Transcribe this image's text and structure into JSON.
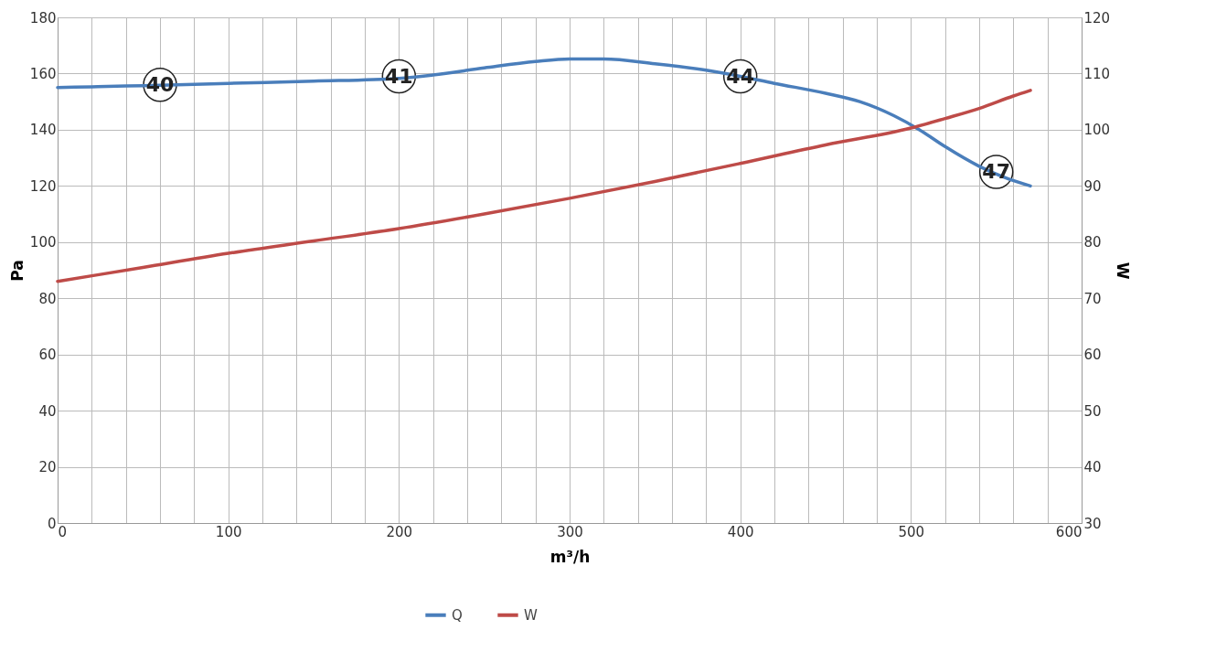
{
  "chart_data": {
    "type": "line",
    "xlabel": "m³/h",
    "ylabel": "Pa",
    "y2label": "W",
    "xlim": [
      0,
      600
    ],
    "xticks": [
      0,
      {
        "value": 20,
        "label": null
      },
      {
        "value": 40,
        "label": null
      },
      {
        "value": 60,
        "label": null
      },
      {
        "value": 80,
        "label": null
      },
      100,
      {
        "value": 120,
        "label": null
      },
      {
        "value": 140,
        "label": null
      },
      {
        "value": 160,
        "label": null
      },
      {
        "value": 180,
        "label": null
      },
      200,
      {
        "value": 220,
        "label": null
      },
      {
        "value": 240,
        "label": null
      },
      {
        "value": 260,
        "label": null
      },
      {
        "value": 280,
        "label": null
      },
      300,
      {
        "value": 320,
        "label": null
      },
      {
        "value": 340,
        "label": null
      },
      {
        "value": 360,
        "label": null
      },
      {
        "value": 380,
        "label": null
      },
      400,
      {
        "value": 420,
        "label": null
      },
      {
        "value": 440,
        "label": null
      },
      {
        "value": 460,
        "label": null
      },
      {
        "value": 480,
        "label": null
      },
      500,
      {
        "value": 520,
        "label": null
      },
      {
        "value": 540,
        "label": null
      },
      {
        "value": 560,
        "label": null
      },
      {
        "value": 580,
        "label": null
      },
      600
    ],
    "ylim": [
      0,
      180
    ],
    "yticks": [
      0,
      20,
      40,
      60,
      80,
      100,
      120,
      140,
      160,
      180
    ],
    "y2lim": [
      30,
      120
    ],
    "y2ticks": [
      30,
      40,
      50,
      60,
      70,
      80,
      90,
      100,
      110,
      120
    ],
    "grid": true,
    "legend": "bottom",
    "marker": "none",
    "line_style": "solid",
    "series": [
      {
        "name": "Q",
        "color": "#4a7ebb",
        "x": [
          0,
          20,
          40,
          60,
          100,
          150,
          200,
          220,
          250,
          280,
          300,
          320,
          350,
          380,
          400,
          420,
          450,
          470,
          490,
          505,
          520,
          540,
          555,
          570
        ],
        "values": [
          155,
          155.3,
          155.6,
          155.8,
          156.5,
          157.3,
          158.3,
          159.5,
          162,
          164.3,
          165.2,
          165.2,
          163.5,
          161.2,
          159,
          156.5,
          153,
          150,
          145,
          140,
          134,
          127,
          123,
          120
        ]
      },
      {
        "name": "W",
        "color": "#be4b48",
        "axis": "y2",
        "x": [
          0,
          50,
          100,
          150,
          200,
          250,
          300,
          350,
          400,
          450,
          500,
          520,
          540,
          560,
          570
        ],
        "values": [
          73,
          75.5,
          78,
          80.2,
          82.4,
          85,
          87.8,
          90.8,
          94,
          97.3,
          100.3,
          102,
          103.8,
          106,
          107
        ]
      }
    ],
    "annotations": [
      {
        "text": "40",
        "x": 60,
        "y": 156
      },
      {
        "text": "41",
        "x": 200,
        "y": 159
      },
      {
        "text": "44",
        "x": 400,
        "y": 159
      },
      {
        "text": "47",
        "x": 550,
        "y": 125
      }
    ]
  }
}
